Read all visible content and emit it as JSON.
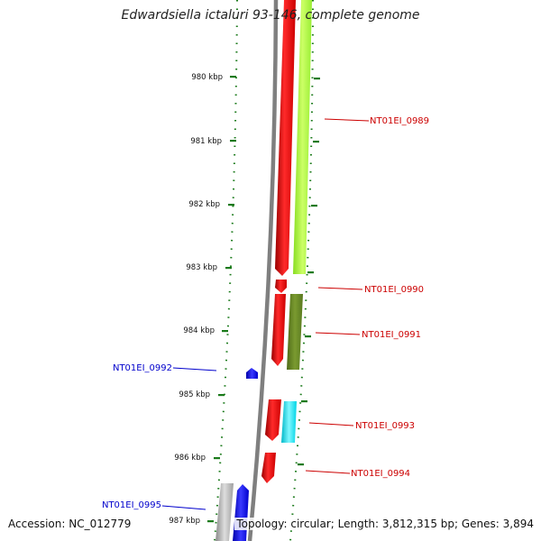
{
  "title": "Edwardsiella ictaluri 93-146, complete genome",
  "accession_text": "Accession: NC_012779",
  "summary_text": "Topology: circular; Length: 3,812,315 bp; Genes: 3,894",
  "ticks": [
    "980 kbp",
    "981 kbp",
    "982 kbp",
    "983 kbp",
    "984 kbp",
    "985 kbp",
    "986 kbp",
    "987 kbp"
  ],
  "gene_labels": [
    {
      "id": "NT01EI_0989",
      "color": "#cc0000"
    },
    {
      "id": "NT01EI_0990",
      "color": "#cc0000"
    },
    {
      "id": "NT01EI_0991",
      "color": "#cc0000"
    },
    {
      "id": "NT01EI_0992",
      "color": "#0000cc"
    },
    {
      "id": "NT01EI_0993",
      "color": "#cc0000"
    },
    {
      "id": "NT01EI_0994",
      "color": "#cc0000"
    },
    {
      "id": "NT01EI_0995",
      "color": "#0000cc"
    }
  ],
  "colors": {
    "backbone": "#888888",
    "tick_marks": "#1a7a1a",
    "forward_cds": "#ff0000",
    "reverse_cds": "#0000ff",
    "pseudo_gene": "#aaaaaa",
    "lime_feature": "#aaff33",
    "olive_feature": "#6b8e23",
    "cyan_feature": "#00e5ee"
  }
}
